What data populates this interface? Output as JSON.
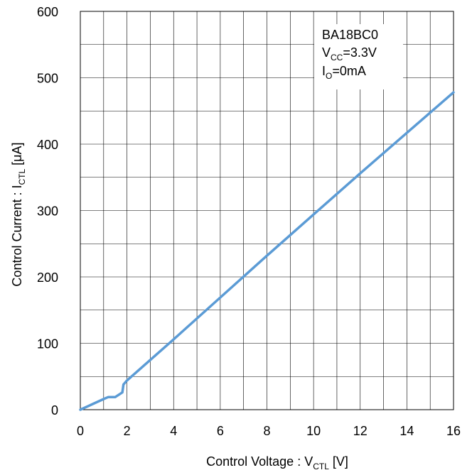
{
  "chart_data": {
    "type": "line",
    "xlabel": {
      "main": "Control Voltage : V",
      "sub": "CTL",
      "unit": " [V]"
    },
    "ylabel": {
      "main": "Control Current : I",
      "sub": "CTL",
      "unit": " [μA]"
    },
    "xlim": [
      0,
      16
    ],
    "ylim": [
      0,
      600
    ],
    "x_ticks": [
      0,
      2,
      4,
      6,
      8,
      10,
      12,
      14,
      16
    ],
    "y_ticks": [
      0,
      100,
      200,
      300,
      400,
      500,
      600
    ],
    "x_minor_step": 1,
    "y_minor_step": 50,
    "grid": true,
    "legend": null,
    "annotation": {
      "line1": "BA18BC0",
      "line2": {
        "main": "V",
        "sub": "CC",
        "rest": "=3.3V"
      },
      "line3": {
        "main": "I",
        "sub": "O",
        "rest": "=0mA"
      }
    },
    "series": [
      {
        "color": "#5b9bd5",
        "x": [
          0,
          0.5,
          1.0,
          1.2,
          1.5,
          1.8,
          1.85,
          2.0,
          4,
          6,
          8,
          10,
          12,
          14,
          16
        ],
        "y": [
          0,
          8,
          16,
          19,
          19,
          26,
          38,
          44,
          106,
          169,
          232,
          294,
          356,
          417,
          478
        ]
      }
    ]
  }
}
